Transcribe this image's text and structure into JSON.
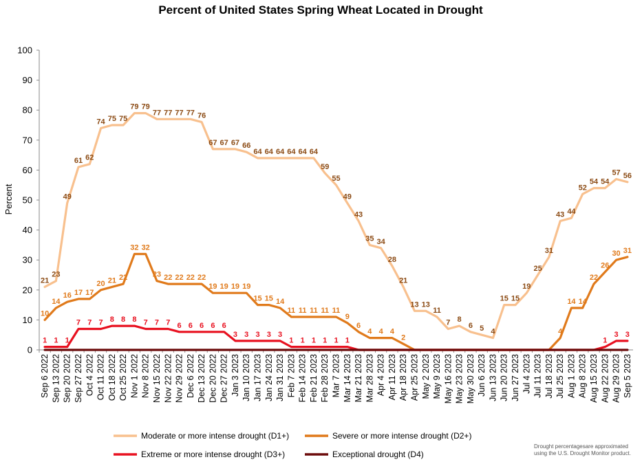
{
  "chart_data": {
    "type": "line",
    "title": "Percent of United States Spring Wheat Located in Drought",
    "ylabel": "Percent",
    "xlabel": "",
    "ylim": [
      0,
      100
    ],
    "yticks": [
      0,
      10,
      20,
      30,
      40,
      50,
      60,
      70,
      80,
      90,
      100
    ],
    "grid": false,
    "legend_position": "bottom",
    "footnote": [
      "Drought percentagesare approximated",
      "using the U.S. Drought Monitor product."
    ],
    "categories": [
      "Sep 6 2022",
      "Sep 13 2022",
      "Sep 20 2022",
      "Sep 27 2022",
      "Oct 4 2022",
      "Oct 11 2022",
      "Oct 18 2022",
      "Oct 25 2022",
      "Nov 1 2022",
      "Nov 8 2022",
      "Nov 15 2022",
      "Nov 22 2022",
      "Nov 29 2022",
      "Dec 6 2022",
      "Dec 13 2022",
      "Dec 20 2022",
      "Dec 27 2022",
      "Jan 3 2023",
      "Jan 10 2023",
      "Jan 17 2023",
      "Jan 24 2023",
      "Jan 31 2023",
      "Feb 7 2023",
      "Feb 14 2023",
      "Feb 21 2023",
      "Feb 28 2023",
      "Mar 7 2023",
      "Mar 14 2023",
      "Mar 21 2023",
      "Mar 28 2023",
      "Apr 4 2023",
      "Apr 11 2023",
      "Apr 18 2023",
      "Apr 25 2023",
      "May 2 2023",
      "May 9 2023",
      "May 16 2023",
      "May 23 2023",
      "May 30 2023",
      "Jun 6 2023",
      "Jun 13 2023",
      "Jun 20 2023",
      "Jun 27 2023",
      "Jul 4 2023",
      "Jul 11 2023",
      "Jul 18 2023",
      "Jul 25 2023",
      "Aug 1 2023",
      "Aug 8 2023",
      "Aug 15 2023",
      "Aug 22 2023",
      "Aug 29 2023",
      "Sep 5 2023"
    ],
    "tick_labels": [
      "Sep 6 2022",
      "Sep 13 2022",
      "Sep 20 2022",
      "Sep 27 2022",
      "Oct 4 2022",
      "Oct 11 2022",
      "Oct 18 2022",
      "Oct 25 2022",
      "Nov 1 2022",
      "Nov 8 2022",
      "Nov 15 2022",
      "Nov 22 2022",
      "Nov 29 2022",
      "Dec 6 2022",
      "Dec 13 2022",
      "Dec 20 2022",
      "Dec 27 2022",
      "Jan 3 2023",
      "Jan 10 2023",
      "Jan 17 2023",
      "Jan 24 2023",
      "Jan 31 2023",
      "Feb 7 2023",
      "Feb 14 2023",
      "Feb 21 2023",
      "Feb 28 2023",
      "Mar 7 2023",
      "Mar 14 2023",
      "Mar 21 2023",
      "Mar 28 2023",
      "Apr 4 2023",
      "Apr 11 2023",
      "Apr 18 2023",
      "Apr 25 2023",
      "May 2 2023",
      "May 9 2023",
      "May 16 2023",
      "May 23 2023",
      "May 30 2023",
      "Jun 6 2023",
      "Jun 13 2023",
      "Jun 20 2023",
      "Jun 27 2023",
      "Jul 4 2023",
      "Jul 11 2023",
      "Jul 18 2023",
      "Jul 25 2023",
      "Aug 1 2023",
      "Aug 8 2023",
      "Aug 15 2023",
      "Aug 22 2023",
      "Aug 29 2023",
      "Sep 5 2023"
    ],
    "series": [
      {
        "name": "Moderate or more intense drought (D1+)",
        "color": "#F8C08E",
        "label_color": "#8B4A13",
        "values": [
          21,
          23,
          49,
          61,
          62,
          74,
          75,
          75,
          79,
          79,
          77,
          77,
          77,
          77,
          76,
          67,
          67,
          67,
          66,
          64,
          64,
          64,
          64,
          64,
          64,
          59,
          55,
          49,
          43,
          35,
          34,
          28,
          21,
          13,
          13,
          11,
          7,
          8,
          6,
          5,
          4,
          15,
          15,
          19,
          25,
          31,
          43,
          44,
          52,
          54,
          54,
          57,
          56
        ],
        "labels": [
          21,
          23,
          49,
          61,
          62,
          74,
          75,
          75,
          79,
          79,
          77,
          77,
          77,
          77,
          76,
          67,
          67,
          67,
          66,
          64,
          64,
          64,
          64,
          64,
          64,
          59,
          55,
          49,
          43,
          35,
          34,
          28,
          21,
          13,
          13,
          11,
          7,
          8,
          6,
          5,
          4,
          15,
          15,
          19,
          25,
          31,
          43,
          44,
          52,
          54,
          54,
          57,
          56
        ]
      },
      {
        "name": "Severe or more intense drought (D2+)",
        "color": "#E07A1B",
        "label_color": "#E07A1B",
        "values": [
          10,
          14,
          16,
          17,
          17,
          20,
          21,
          22,
          32,
          32,
          23,
          22,
          22,
          22,
          22,
          19,
          19,
          19,
          19,
          15,
          15,
          14,
          11,
          11,
          11,
          11,
          11,
          9,
          6,
          4,
          4,
          4,
          2,
          0,
          0,
          0,
          0,
          0,
          0,
          0,
          0,
          0,
          0,
          0,
          0,
          0,
          4,
          14,
          14,
          22,
          26,
          30,
          31
        ],
        "labels": [
          10,
          14,
          16,
          17,
          17,
          20,
          21,
          22,
          32,
          32,
          23,
          22,
          22,
          22,
          22,
          19,
          19,
          19,
          19,
          15,
          15,
          14,
          11,
          11,
          11,
          11,
          11,
          9,
          6,
          4,
          4,
          4,
          2,
          null,
          null,
          null,
          null,
          null,
          null,
          null,
          null,
          null,
          null,
          null,
          null,
          null,
          4,
          14,
          14,
          22,
          26,
          30,
          31
        ]
      },
      {
        "name": "Extreme or more intense drought (D3+)",
        "color": "#E8101F",
        "label_color": "#E8101F",
        "values": [
          1,
          1,
          1,
          7,
          7,
          7,
          8,
          8,
          8,
          7,
          7,
          7,
          6,
          6,
          6,
          6,
          6,
          3,
          3,
          3,
          3,
          3,
          1,
          1,
          1,
          1,
          1,
          1,
          0,
          0,
          0,
          0,
          0,
          0,
          0,
          0,
          0,
          0,
          0,
          0,
          0,
          0,
          0,
          0,
          0,
          0,
          0,
          0,
          0,
          0,
          1,
          3,
          3
        ],
        "labels": [
          1,
          1,
          1,
          7,
          7,
          7,
          8,
          8,
          8,
          7,
          7,
          7,
          6,
          6,
          6,
          6,
          6,
          3,
          3,
          3,
          3,
          3,
          1,
          1,
          1,
          1,
          1,
          1,
          null,
          null,
          null,
          null,
          null,
          null,
          null,
          null,
          null,
          null,
          null,
          null,
          null,
          null,
          null,
          null,
          null,
          null,
          null,
          null,
          null,
          null,
          1,
          3,
          3
        ]
      },
      {
        "name": "Exceptional drought (D4)",
        "color": "#6B0A0A",
        "label_color": "#6B0A0A",
        "values": [
          0,
          0,
          0,
          0,
          0,
          0,
          0,
          0,
          0,
          0,
          0,
          0,
          0,
          0,
          0,
          0,
          0,
          0,
          0,
          0,
          0,
          0,
          0,
          0,
          0,
          0,
          0,
          0,
          0,
          0,
          0,
          0,
          0,
          0,
          0,
          0,
          0,
          0,
          0,
          0,
          0,
          0,
          0,
          0,
          0,
          0,
          0,
          0,
          0,
          0,
          0,
          0,
          0
        ],
        "labels": []
      }
    ]
  }
}
